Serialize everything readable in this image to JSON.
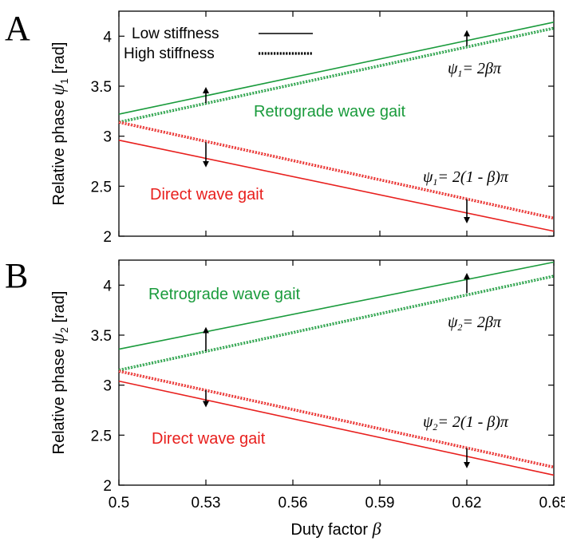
{
  "colors": {
    "green": "#1a9b3c",
    "red": "#e8201e",
    "arrow": "#000000"
  },
  "xaxis": {
    "label": "Duty factor ",
    "label_symbol": "β"
  },
  "legend": {
    "low": "Low stiffness",
    "high": "High stiffness"
  },
  "chart_data": [
    {
      "type": "line",
      "panel": "A",
      "ylabel": "Relative phase ",
      "ylabel_symbol": "ψ",
      "ylabel_sub": "1",
      "ylabel_unit": " [rad]",
      "xlim": [
        0.5,
        0.65
      ],
      "ylim": [
        2.0,
        4.25
      ],
      "xticks": [
        "0.5",
        "0.53",
        "0.56",
        "0.59",
        "0.62",
        "0.65"
      ],
      "yticks": [
        "2",
        "2.5",
        "3",
        "3.5",
        "4"
      ],
      "series": [
        {
          "name": "Low stiffness",
          "group": "Retrograde wave gait",
          "x": [
            0.5,
            0.65
          ],
          "y": [
            3.22,
            4.14
          ]
        },
        {
          "name": "High stiffness",
          "group": "Retrograde wave gait",
          "x": [
            0.5,
            0.65
          ],
          "y": [
            3.14,
            4.08
          ]
        },
        {
          "name": "Low stiffness",
          "group": "Direct wave gait",
          "x": [
            0.5,
            0.65
          ],
          "y": [
            2.96,
            2.05
          ]
        },
        {
          "name": "High stiffness",
          "group": "Direct wave gait",
          "x": [
            0.5,
            0.65
          ],
          "y": [
            3.14,
            2.18
          ]
        }
      ],
      "arrows": [
        {
          "x": 0.53,
          "from": 3.33,
          "to": 3.46
        },
        {
          "x": 0.62,
          "from": 3.9,
          "to": 4.03
        },
        {
          "x": 0.53,
          "from": 2.94,
          "to": 2.72
        },
        {
          "x": 0.62,
          "from": 2.37,
          "to": 2.16
        }
      ],
      "labels": {
        "retro": "Retrograde wave gait",
        "direct": "Direct wave gait",
        "eq_retro_pre": "ψ",
        "eq_retro_sub": "1",
        "eq_retro_post": "= 2βπ",
        "eq_direct_pre": "ψ",
        "eq_direct_sub": "1",
        "eq_direct_post": "= 2(1 - β)π"
      }
    },
    {
      "type": "line",
      "panel": "B",
      "ylabel": "Relative phase ",
      "ylabel_symbol": "ψ",
      "ylabel_sub": "2",
      "ylabel_unit": " [rad]",
      "xlim": [
        0.5,
        0.65
      ],
      "ylim": [
        2.0,
        4.25
      ],
      "xticks": [
        "0.5",
        "0.53",
        "0.56",
        "0.59",
        "0.62",
        "0.65"
      ],
      "yticks": [
        "2",
        "2.5",
        "3",
        "3.5",
        "4"
      ],
      "series": [
        {
          "name": "Low stiffness",
          "group": "Retrograde wave gait",
          "x": [
            0.5,
            0.65
          ],
          "y": [
            3.36,
            4.23
          ]
        },
        {
          "name": "High stiffness",
          "group": "Retrograde wave gait",
          "x": [
            0.5,
            0.65
          ],
          "y": [
            3.15,
            4.09
          ]
        },
        {
          "name": "Low stiffness",
          "group": "Direct wave gait",
          "x": [
            0.5,
            0.65
          ],
          "y": [
            3.04,
            2.1
          ]
        },
        {
          "name": "High stiffness",
          "group": "Direct wave gait",
          "x": [
            0.5,
            0.65
          ],
          "y": [
            3.14,
            2.18
          ]
        }
      ],
      "arrows": [
        {
          "x": 0.53,
          "from": 3.34,
          "to": 3.55
        },
        {
          "x": 0.62,
          "from": 3.92,
          "to": 4.09
        },
        {
          "x": 0.53,
          "from": 2.95,
          "to": 2.81
        },
        {
          "x": 0.62,
          "from": 2.37,
          "to": 2.2
        }
      ],
      "labels": {
        "retro": "Retrograde wave gait",
        "direct": "Direct wave gait",
        "eq_retro_pre": "ψ",
        "eq_retro_sub": "2",
        "eq_retro_post": "= 2βπ",
        "eq_direct_pre": "ψ",
        "eq_direct_sub": "2",
        "eq_direct_post": "= 2(1 - β)π"
      }
    }
  ]
}
